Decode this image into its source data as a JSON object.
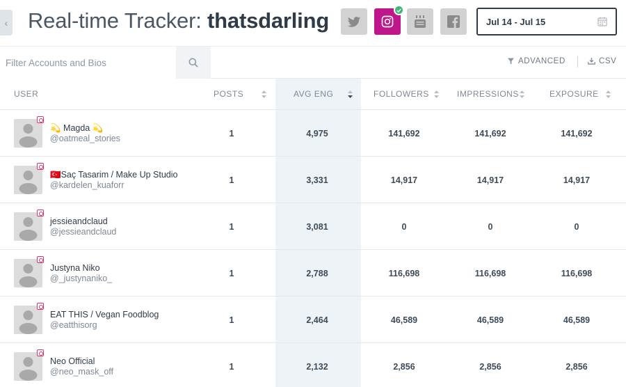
{
  "header": {
    "title_prefix": "Real-time Tracker:",
    "account": "thatsdarling",
    "back_icon": "chevron-left-icon",
    "networks": [
      {
        "name": "twitter",
        "icon": "twitter-icon",
        "active": false
      },
      {
        "name": "instagram",
        "icon": "instagram-icon",
        "active": true
      },
      {
        "name": "youtube",
        "icon": "youtube-icon",
        "active": false
      },
      {
        "name": "facebook",
        "icon": "facebook-icon",
        "active": false
      }
    ],
    "date_range": "Jul 14 - Jul 15"
  },
  "filter": {
    "placeholder": "Filter Accounts and Bios",
    "advanced_label": "ADVANCED",
    "csv_label": "CSV"
  },
  "table": {
    "columns": [
      "USER",
      "POSTS",
      "AVG ENG",
      "FOLLOWERS",
      "IMPRESSIONS",
      "EXPOSURE"
    ],
    "sorted_column": "AVG ENG",
    "rows": [
      {
        "name": "💫 Magda 💫",
        "handle": "@oatmeal_stories",
        "posts": "1",
        "avg_eng": "4,975",
        "followers": "141,692",
        "impressions": "141,692",
        "exposure": "141,692"
      },
      {
        "name": "🇹🇷Saç Tasarim / Make Up Studio",
        "handle": "@kardelen_kuaforr",
        "posts": "1",
        "avg_eng": "3,331",
        "followers": "14,917",
        "impressions": "14,917",
        "exposure": "14,917"
      },
      {
        "name": "jessieandclaud",
        "handle": "@jessieandclaud",
        "posts": "1",
        "avg_eng": "3,081",
        "followers": "0",
        "impressions": "0",
        "exposure": "0"
      },
      {
        "name": "Justyna Niko",
        "handle": "@_justynaniko_",
        "posts": "1",
        "avg_eng": "2,788",
        "followers": "116,698",
        "impressions": "116,698",
        "exposure": "116,698"
      },
      {
        "name": "EAT THIS / Vegan Foodblog",
        "handle": "@eatthisorg",
        "posts": "1",
        "avg_eng": "2,464",
        "followers": "46,589",
        "impressions": "46,589",
        "exposure": "46,589"
      },
      {
        "name": "Neo Official",
        "handle": "@neo_mask_off",
        "posts": "1",
        "avg_eng": "2,132",
        "followers": "2,856",
        "impressions": "2,856",
        "exposure": "2,856"
      }
    ]
  },
  "colors": {
    "instagram_active": "#c0168c",
    "check_badge": "#3cb878",
    "highlight_column": "#eef3f8"
  }
}
